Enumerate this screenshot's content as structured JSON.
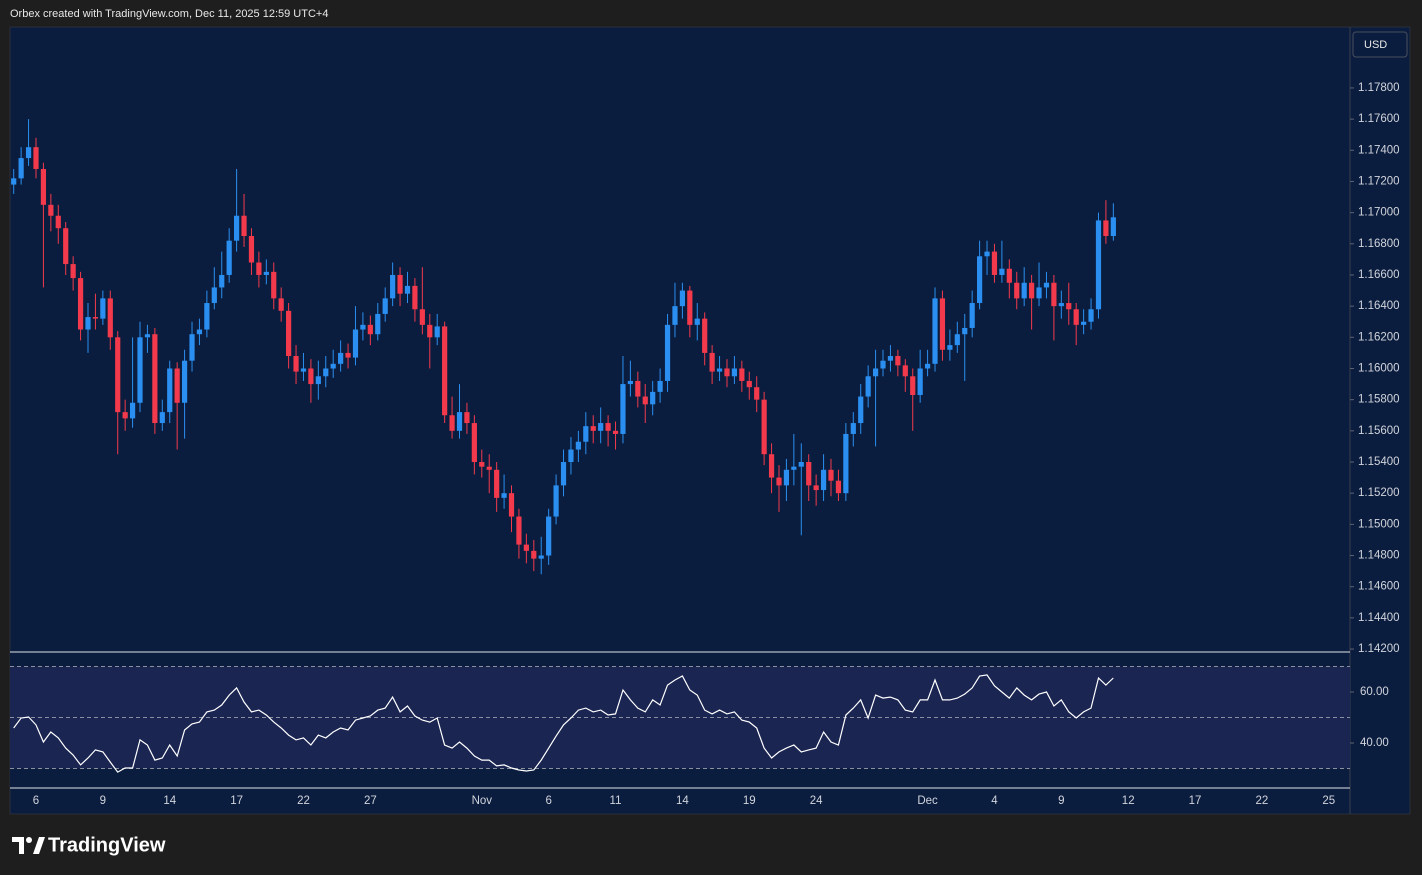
{
  "header": {
    "text": "Orbex created with TradingView.com, Dec 11, 2025 12:59 UTC+4"
  },
  "footer": {
    "brand": "TradingView"
  },
  "chart_data": [
    {
      "type": "candlestick",
      "currency": "USD",
      "categories": [
        null,
        null,
        null,
        "6",
        null,
        null,
        null,
        null,
        null,
        null,
        null,
        null,
        "9",
        null,
        null,
        null,
        null,
        null,
        null,
        null,
        null,
        "14",
        null,
        null,
        null,
        null,
        null,
        null,
        null,
        null,
        "17",
        null,
        null,
        null,
        null,
        null,
        null,
        null,
        null,
        "22",
        null,
        null,
        null,
        null,
        null,
        null,
        null,
        null,
        "27",
        null,
        null,
        null,
        null,
        null,
        null,
        null,
        null,
        null,
        null,
        null,
        null,
        null,
        null,
        "Nov",
        null,
        null,
        null,
        null,
        null,
        null,
        null,
        null,
        "6",
        null,
        null,
        null,
        null,
        null,
        null,
        null,
        null,
        "11",
        null,
        null,
        null,
        null,
        null,
        null,
        null,
        null,
        "14",
        null,
        null,
        null,
        null,
        null,
        null,
        null,
        null,
        "19",
        null,
        null,
        null,
        null,
        null,
        null,
        null,
        null,
        "24",
        null,
        null,
        null,
        null,
        null,
        null,
        null,
        null,
        null,
        null,
        null,
        null,
        null,
        null,
        "Dec",
        null,
        null,
        null,
        null,
        null,
        null,
        null,
        null,
        "4",
        null,
        null,
        null,
        null,
        null,
        null,
        null,
        null,
        "9",
        null,
        null,
        null,
        null,
        null,
        null,
        null,
        null,
        "12",
        null,
        null,
        null,
        null,
        null,
        null,
        null,
        null,
        "17",
        null,
        null,
        null,
        null,
        null,
        null,
        null,
        null,
        "22",
        null,
        null,
        null,
        null,
        null,
        null,
        null,
        null,
        "25",
        null,
        null
      ],
      "open": [
        1.1718,
        1.1722,
        1.1735,
        1.1742,
        1.1728,
        1.1705,
        1.1698,
        1.169,
        1.1667,
        1.1658,
        1.1625,
        1.1633,
        1.1632,
        1.1645,
        1.162,
        1.1572,
        1.1568,
        1.1578,
        1.162,
        1.1622,
        1.1565,
        1.1572,
        1.16,
        1.1578,
        1.1605,
        1.1622,
        1.1625,
        1.1642,
        1.1652,
        1.166,
        1.1682,
        1.1698,
        1.1685,
        1.1668,
        1.166,
        1.1662,
        1.1645,
        1.1637,
        1.1608,
        1.1598,
        1.16,
        1.159,
        1.1595,
        1.16,
        1.1603,
        1.161,
        1.1607,
        1.1625,
        1.1628,
        1.1622,
        1.1635,
        1.1645,
        1.166,
        1.1648,
        1.1653,
        1.1638,
        1.1628,
        1.162,
        1.1627,
        1.157,
        1.156,
        1.1572,
        1.1565,
        1.154,
        1.1537,
        1.1535,
        1.1517,
        1.152,
        1.1505,
        1.1487,
        1.1483,
        1.1478,
        1.148,
        1.1505,
        1.1525,
        1.154,
        1.1548,
        1.1553,
        1.1563,
        1.156,
        1.1565,
        1.156,
        1.1558,
        1.159,
        1.1592,
        1.1582,
        1.1577,
        1.1585,
        1.1592,
        1.1628,
        1.164,
        1.165,
        1.1628,
        1.1632,
        1.161,
        1.1598,
        1.16,
        1.1595,
        1.16,
        1.1592,
        1.1588,
        1.158,
        1.1545,
        1.153,
        1.1525,
        1.1535,
        1.1537,
        1.154,
        1.1525,
        1.1522,
        1.1535,
        1.1528,
        1.152,
        1.1558,
        1.1565,
        1.1582,
        1.1595,
        1.16,
        1.1605,
        1.1608,
        1.1602,
        1.1595,
        1.1583,
        1.16,
        1.1603,
        1.1645,
        1.1612,
        1.1615,
        1.1622,
        1.1626,
        1.1642,
        1.1672,
        1.1675,
        1.166,
        1.1664,
        1.1655,
        1.1645,
        1.1655,
        1.1645,
        1.1652,
        1.1655,
        1.164,
        1.1642,
        1.1638,
        1.1628,
        1.163,
        1.1638,
        1.1695,
        1.1685,
        null,
        null,
        null,
        null,
        null,
        null,
        null,
        null,
        null,
        null,
        null,
        null,
        null,
        null,
        null,
        null,
        null,
        null,
        null,
        null,
        null,
        null,
        null,
        null,
        null,
        null,
        null,
        null,
        null,
        null,
        null
      ],
      "high": [
        1.1728,
        1.1742,
        1.176,
        1.1748,
        1.1732,
        1.1712,
        1.1705,
        1.1694,
        1.1672,
        1.1662,
        1.1642,
        1.1648,
        1.165,
        1.165,
        1.1624,
        1.158,
        1.162,
        1.163,
        1.1628,
        1.1626,
        1.158,
        1.1605,
        1.1604,
        1.1612,
        1.163,
        1.1632,
        1.165,
        1.1665,
        1.1675,
        1.169,
        1.1728,
        1.1712,
        1.169,
        1.1675,
        1.167,
        1.1668,
        1.1652,
        1.1642,
        1.1615,
        1.161,
        1.1606,
        1.1605,
        1.1608,
        1.1612,
        1.1618,
        1.1616,
        1.164,
        1.1636,
        1.1634,
        1.1642,
        1.1652,
        1.1668,
        1.1665,
        1.1662,
        1.1658,
        1.1665,
        1.1635,
        1.1635,
        1.163,
        1.1582,
        1.159,
        1.1578,
        1.157,
        1.1548,
        1.1545,
        1.154,
        1.1532,
        1.1525,
        1.151,
        1.1494,
        1.149,
        1.1492,
        1.151,
        1.1532,
        1.1548,
        1.1556,
        1.156,
        1.1572,
        1.157,
        1.1575,
        1.157,
        1.1566,
        1.1608,
        1.1605,
        1.1598,
        1.159,
        1.1592,
        1.16,
        1.1635,
        1.1655,
        1.1655,
        1.1653,
        1.1642,
        1.1636,
        1.1615,
        1.1608,
        1.1606,
        1.1608,
        1.1605,
        1.1598,
        1.1595,
        1.1585,
        1.1552,
        1.1538,
        1.1542,
        1.1558,
        1.1552,
        1.1545,
        1.1532,
        1.1545,
        1.1542,
        1.1535,
        1.1565,
        1.1572,
        1.159,
        1.1602,
        1.1612,
        1.1612,
        1.1615,
        1.1612,
        1.1606,
        1.16,
        1.1612,
        1.1612,
        1.1652,
        1.165,
        1.1625,
        1.163,
        1.1635,
        1.165,
        1.1682,
        1.1682,
        1.168,
        1.1682,
        1.167,
        1.1662,
        1.1665,
        1.166,
        1.1668,
        1.1662,
        1.166,
        1.165,
        1.1655,
        1.1642,
        1.1638,
        1.1645,
        1.17,
        1.1708,
        1.1706,
        null,
        null,
        null,
        null,
        null,
        null,
        null,
        null,
        null,
        null,
        null,
        null,
        null,
        null,
        null,
        null,
        null,
        null,
        null,
        null,
        null,
        null,
        null,
        null,
        null,
        null,
        null,
        null,
        null,
        null,
        null
      ],
      "low": [
        1.1712,
        1.1718,
        1.173,
        1.1722,
        1.1652,
        1.1688,
        1.168,
        1.166,
        1.165,
        1.1618,
        1.161,
        1.1625,
        1.1628,
        1.1612,
        1.1545,
        1.156,
        1.1562,
        1.1572,
        1.161,
        1.1558,
        1.156,
        1.1565,
        1.1548,
        1.1555,
        1.1598,
        1.1615,
        1.162,
        1.1638,
        1.1645,
        1.1655,
        1.1675,
        1.1678,
        1.166,
        1.1652,
        1.1654,
        1.1638,
        1.163,
        1.16,
        1.159,
        1.1592,
        1.1578,
        1.158,
        1.1588,
        1.1594,
        1.1598,
        1.16,
        1.1602,
        1.1618,
        1.1615,
        1.1618,
        1.163,
        1.164,
        1.164,
        1.1642,
        1.163,
        1.1622,
        1.16,
        1.1615,
        1.1565,
        1.1555,
        1.1555,
        1.1558,
        1.1532,
        1.153,
        1.152,
        1.1508,
        1.151,
        1.1495,
        1.1478,
        1.1475,
        1.147,
        1.1468,
        1.1474,
        1.15,
        1.1518,
        1.1532,
        1.154,
        1.1545,
        1.1552,
        1.1552,
        1.155,
        1.1548,
        1.1552,
        1.1582,
        1.1575,
        1.1565,
        1.157,
        1.1578,
        1.1585,
        1.162,
        1.1632,
        1.162,
        1.1618,
        1.1602,
        1.159,
        1.1592,
        1.1588,
        1.159,
        1.1585,
        1.158,
        1.1572,
        1.1538,
        1.152,
        1.1508,
        1.1515,
        1.1525,
        1.1493,
        1.1515,
        1.1512,
        1.1515,
        1.1518,
        1.1515,
        1.1515,
        1.155,
        1.1558,
        1.1575,
        1.155,
        1.1595,
        1.1598,
        1.1595,
        1.1585,
        1.156,
        1.1578,
        1.1595,
        1.1598,
        1.1605,
        1.1605,
        1.161,
        1.1592,
        1.162,
        1.1638,
        1.166,
        1.1655,
        1.1655,
        1.1645,
        1.1638,
        1.164,
        1.1625,
        1.164,
        1.1645,
        1.1618,
        1.1632,
        1.1628,
        1.1615,
        1.1622,
        1.1625,
        1.1632,
        1.168,
        1.1682,
        null,
        null,
        null,
        null,
        null,
        null,
        null,
        null,
        null,
        null,
        null,
        null,
        null,
        null,
        null,
        null,
        null,
        null,
        null,
        null,
        null,
        null,
        null,
        null,
        null,
        null,
        null,
        null,
        null,
        null,
        null
      ],
      "close": [
        1.1722,
        1.1735,
        1.1742,
        1.1728,
        1.1705,
        1.1698,
        1.169,
        1.1667,
        1.1658,
        1.1625,
        1.1633,
        1.1632,
        1.1645,
        1.162,
        1.1572,
        1.1568,
        1.1578,
        1.162,
        1.1622,
        1.1565,
        1.1572,
        1.16,
        1.1578,
        1.1605,
        1.1622,
        1.1625,
        1.1642,
        1.1652,
        1.166,
        1.1682,
        1.1698,
        1.1685,
        1.1668,
        1.166,
        1.1662,
        1.1645,
        1.1637,
        1.1608,
        1.1598,
        1.16,
        1.159,
        1.1595,
        1.16,
        1.1603,
        1.161,
        1.1607,
        1.1625,
        1.1628,
        1.1622,
        1.1635,
        1.1645,
        1.166,
        1.1648,
        1.1653,
        1.1638,
        1.1628,
        1.162,
        1.1627,
        1.157,
        1.156,
        1.1572,
        1.1565,
        1.154,
        1.1537,
        1.1535,
        1.1517,
        1.152,
        1.1505,
        1.1487,
        1.1483,
        1.1478,
        1.148,
        1.1505,
        1.1525,
        1.154,
        1.1548,
        1.1553,
        1.1563,
        1.156,
        1.1565,
        1.156,
        1.1558,
        1.159,
        1.1592,
        1.1582,
        1.1577,
        1.1585,
        1.1592,
        1.1628,
        1.164,
        1.165,
        1.1628,
        1.1632,
        1.161,
        1.1598,
        1.16,
        1.1595,
        1.16,
        1.1592,
        1.1588,
        1.158,
        1.1545,
        1.153,
        1.1525,
        1.1535,
        1.1537,
        1.154,
        1.1525,
        1.1522,
        1.1535,
        1.1528,
        1.152,
        1.1558,
        1.1565,
        1.1582,
        1.1595,
        1.16,
        1.1605,
        1.1608,
        1.1602,
        1.1595,
        1.1583,
        1.16,
        1.1603,
        1.1645,
        1.1612,
        1.1615,
        1.1622,
        1.1626,
        1.1642,
        1.1672,
        1.1675,
        1.166,
        1.1664,
        1.1655,
        1.1645,
        1.1655,
        1.1645,
        1.1652,
        1.1655,
        1.164,
        1.1642,
        1.1638,
        1.1628,
        1.163,
        1.1638,
        1.1695,
        1.1685,
        1.1697,
        null,
        null,
        null,
        null,
        null,
        null,
        null,
        null,
        null,
        null,
        null,
        null,
        null,
        null,
        null,
        null,
        null,
        null,
        null,
        null,
        null,
        null,
        null,
        null,
        null,
        null,
        null,
        null,
        null,
        null,
        null
      ],
      "up_color": "#2a8ff0",
      "down_color": "#f23a4c",
      "ylim": [
        1.14181,
        1.18191
      ],
      "yticks": [
        {
          "value": 1.142,
          "label": "1.14200"
        },
        {
          "value": 1.144,
          "label": "1.14400"
        },
        {
          "value": 1.146,
          "label": "1.14600"
        },
        {
          "value": 1.148,
          "label": "1.14800"
        },
        {
          "value": 1.15,
          "label": "1.15000"
        },
        {
          "value": 1.152,
          "label": "1.15200"
        },
        {
          "value": 1.154,
          "label": "1.15400"
        },
        {
          "value": 1.156,
          "label": "1.15600"
        },
        {
          "value": 1.158,
          "label": "1.15800"
        },
        {
          "value": 1.16,
          "label": "1.16000"
        },
        {
          "value": 1.162,
          "label": "1.16200"
        },
        {
          "value": 1.164,
          "label": "1.16400"
        },
        {
          "value": 1.166,
          "label": "1.16600"
        },
        {
          "value": 1.168,
          "label": "1.16800"
        },
        {
          "value": 1.17,
          "label": "1.17000"
        },
        {
          "value": 1.172,
          "label": "1.17200"
        },
        {
          "value": 1.174,
          "label": "1.17400"
        },
        {
          "value": 1.176,
          "label": "1.17600"
        },
        {
          "value": 1.178,
          "label": "1.17800"
        }
      ]
    },
    {
      "type": "line",
      "color": "#ffffff",
      "values": [
        45.9,
        49.8,
        50.2,
        47.1,
        40.4,
        44.3,
        42,
        38,
        35.3,
        31.4,
        34.1,
        37.3,
        36.5,
        32.5,
        28.6,
        30.2,
        30.2,
        41.2,
        39.2,
        33.3,
        34.1,
        39.2,
        34.9,
        45.1,
        47.5,
        48.2,
        52.2,
        52.9,
        54.9,
        58.8,
        61.6,
        56.1,
        52.2,
        52.9,
        51,
        48.2,
        45.9,
        43.1,
        41.2,
        42,
        39.2,
        43.1,
        42,
        44.3,
        45.9,
        45.1,
        49,
        49.8,
        50.6,
        52.9,
        53.7,
        58,
        52.2,
        54.5,
        50.6,
        49,
        48.2,
        49.8,
        39.2,
        38,
        40.4,
        38,
        34.9,
        33.3,
        33.3,
        31,
        31.4,
        30.2,
        29.4,
        29,
        29.4,
        33.3,
        38,
        42.7,
        47.1,
        49.8,
        52.9,
        53.7,
        52.2,
        52.9,
        51,
        51.4,
        60.8,
        56.9,
        53.7,
        52.2,
        56.9,
        54.9,
        62.7,
        64.7,
        66.3,
        60.8,
        58.8,
        52.9,
        51.4,
        52.9,
        51.4,
        52.2,
        49,
        48.2,
        45.9,
        38,
        34.1,
        36.5,
        38,
        39.2,
        36.5,
        37.3,
        38,
        44.3,
        40.4,
        39.2,
        51,
        53.7,
        56.9,
        49.8,
        58.8,
        57.6,
        58,
        56.9,
        52.9,
        52.2,
        56.9,
        56.9,
        64.7,
        56.9,
        56.9,
        57.6,
        59.2,
        61.6,
        66.3,
        66.7,
        62.4,
        60,
        57.6,
        61.6,
        58.8,
        56.9,
        59.2,
        60,
        54.5,
        56.9,
        52.2,
        49.8,
        52.2,
        53.7,
        65.5,
        62.7,
        65.5,
        null,
        null,
        null,
        null,
        null,
        null,
        null,
        null,
        null,
        null,
        null,
        null,
        null,
        null,
        null,
        null,
        null,
        null,
        null,
        null,
        null,
        null,
        null,
        null,
        null,
        null,
        null,
        null,
        null,
        null,
        null
      ],
      "ylim": [
        22.35,
        75.7
      ],
      "yticks": [
        {
          "value": 40,
          "label": "40.00"
        },
        {
          "value": 60,
          "label": "60.00"
        }
      ],
      "levels": [
        30,
        50,
        70
      ]
    }
  ]
}
